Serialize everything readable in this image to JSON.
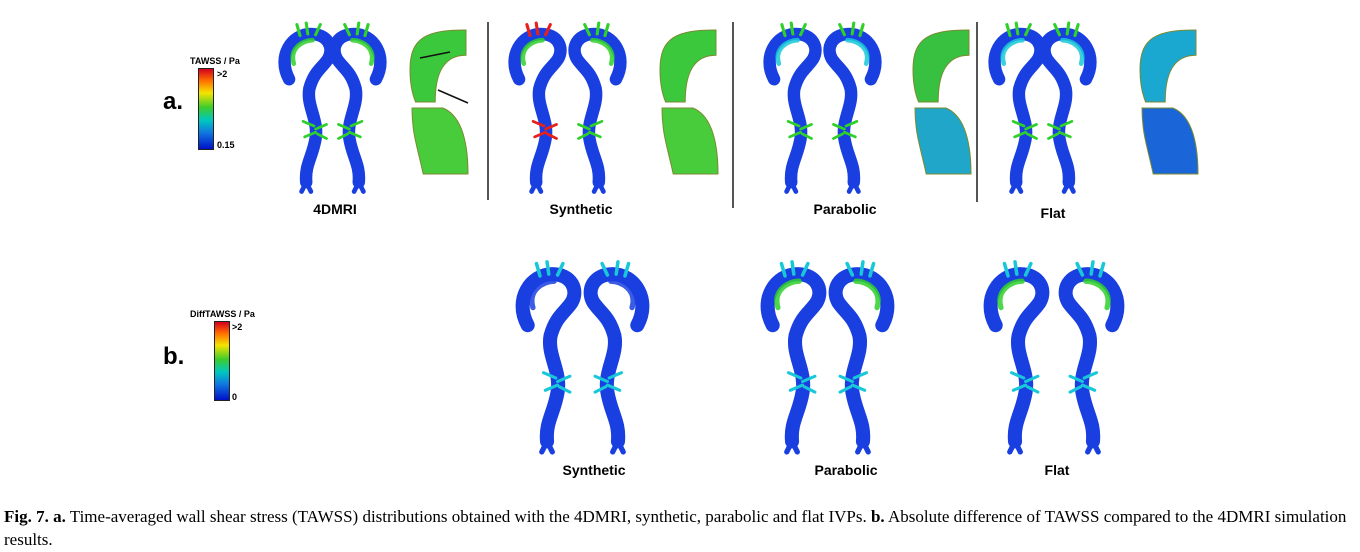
{
  "panel_a": {
    "label": "a.",
    "colorbar": {
      "title": "TAWSS / Pa",
      "max_label": ">2",
      "min_label": "0.15"
    },
    "cases": [
      "4DMRI",
      "Synthetic",
      "Parabolic",
      "Flat"
    ]
  },
  "panel_b": {
    "label": "b.",
    "colorbar": {
      "title": "DiffTAWSS / Pa",
      "max_label": ">2",
      "min_label": "0"
    },
    "cases": [
      "Synthetic",
      "Parabolic",
      "Flat"
    ]
  },
  "caption": {
    "fig_label": "Fig. 7.",
    "a_label": "a.",
    "a_text": " Time-averaged wall shear stress (TAWSS) distributions obtained with the 4DMRI, synthetic, parabolic and flat IVPs. ",
    "b_label": "b.",
    "b_text": " Absolute difference of TAWSS compared to the 4DMRI simulation results."
  },
  "colors": {
    "low": "#1a3fe0",
    "mid": "#2fd02a",
    "high": "#e8201c",
    "cyan": "#18c8d8"
  }
}
